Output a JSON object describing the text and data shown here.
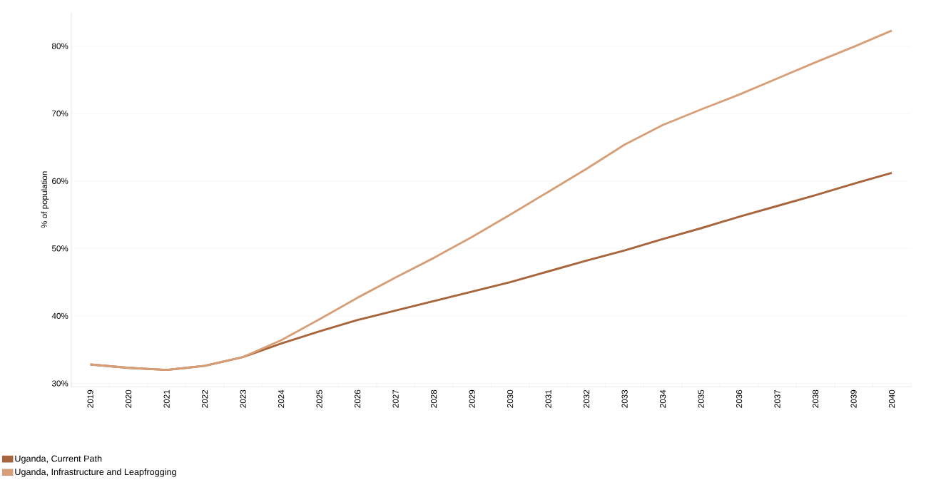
{
  "chart_data": {
    "type": "line",
    "ylabel": "% of population",
    "categories": [
      "2019",
      "2020",
      "2021",
      "2022",
      "2023",
      "2024",
      "2025",
      "2026",
      "2027",
      "2028",
      "2029",
      "2030",
      "2031",
      "2032",
      "2033",
      "2034",
      "2035",
      "2036",
      "2037",
      "2038",
      "2039",
      "2040"
    ],
    "series": [
      {
        "name": "Uganda, Current Path",
        "color": "#a8643a",
        "values": [
          32.8,
          32.3,
          32.0,
          32.6,
          33.9,
          35.9,
          37.7,
          39.4,
          40.8,
          42.2,
          43.6,
          45.0,
          46.6,
          48.2,
          49.7,
          51.4,
          53.0,
          54.7,
          56.3,
          57.9,
          59.6,
          61.2
        ]
      },
      {
        "name": "Uganda, Infrastructure and Leapfrogging",
        "color": "#d79f78",
        "values": [
          32.8,
          32.3,
          32.0,
          32.6,
          33.9,
          36.4,
          39.5,
          42.7,
          45.7,
          48.6,
          51.7,
          55.0,
          58.4,
          61.8,
          65.4,
          68.3,
          70.6,
          72.8,
          75.2,
          77.6,
          79.9,
          82.3
        ]
      }
    ],
    "ylim": [
      29.5,
      85
    ],
    "yticks": [
      {
        "value": 30,
        "label": "30%"
      },
      {
        "value": 40,
        "label": "40%"
      },
      {
        "value": 50,
        "label": "50%"
      },
      {
        "value": 60,
        "label": "60%"
      },
      {
        "value": 70,
        "label": "70%"
      },
      {
        "value": 80,
        "label": "80%"
      }
    ],
    "grid": "y",
    "legend": "bottom left",
    "marker": "none",
    "line_style": "solid"
  }
}
